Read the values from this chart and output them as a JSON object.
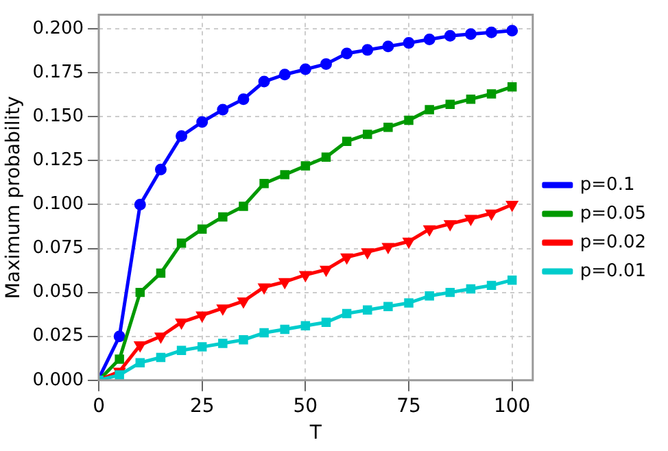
{
  "chart_data": {
    "type": "line",
    "xlabel": "T",
    "ylabel": "Maximum probability",
    "x": [
      0,
      5,
      10,
      15,
      20,
      25,
      30,
      35,
      40,
      45,
      50,
      55,
      60,
      65,
      70,
      75,
      80,
      85,
      90,
      95,
      100
    ],
    "series": [
      {
        "name": "p=0.1",
        "color": "#0000ff",
        "marker": "circle",
        "values": [
          0.001,
          0.025,
          0.1,
          0.12,
          0.139,
          0.147,
          0.154,
          0.16,
          0.17,
          0.174,
          0.177,
          0.18,
          0.186,
          0.188,
          0.19,
          0.192,
          0.194,
          0.196,
          0.197,
          0.198,
          0.199
        ]
      },
      {
        "name": "p=0.05",
        "color": "#009900",
        "marker": "square",
        "values": [
          0,
          0.012,
          0.05,
          0.061,
          0.078,
          0.086,
          0.093,
          0.099,
          0.112,
          0.117,
          0.122,
          0.127,
          0.136,
          0.14,
          0.144,
          0.148,
          0.154,
          0.157,
          0.16,
          0.163,
          0.167
        ]
      },
      {
        "name": "p=0.02",
        "color": "#ff0000",
        "marker": "triangle",
        "values": [
          0,
          0.005,
          0.02,
          0.025,
          0.033,
          0.037,
          0.041,
          0.045,
          0.053,
          0.056,
          0.06,
          0.063,
          0.07,
          0.073,
          0.076,
          0.079,
          0.086,
          0.089,
          0.092,
          0.095,
          0.1
        ]
      },
      {
        "name": "p=0.01",
        "color": "#00cccc",
        "marker": "square",
        "values": [
          0,
          0.003,
          0.01,
          0.013,
          0.017,
          0.019,
          0.021,
          0.023,
          0.027,
          0.029,
          0.031,
          0.033,
          0.038,
          0.04,
          0.042,
          0.044,
          0.048,
          0.05,
          0.052,
          0.054,
          0.057
        ]
      }
    ],
    "xlim": [
      0,
      105
    ],
    "xticks": [
      0,
      25,
      50,
      75,
      100
    ],
    "ylim": [
      0,
      0.208
    ],
    "yticks": [
      {
        "value": 0,
        "label": "0.000"
      },
      {
        "value": 0.025,
        "label": "0.025"
      },
      {
        "value": 0.05,
        "label": "0.050"
      },
      {
        "value": 0.075,
        "label": "0.075"
      },
      {
        "value": 0.1,
        "label": "0.100"
      },
      {
        "value": 0.125,
        "label": "0.125"
      },
      {
        "value": 0.15,
        "label": "0.150"
      },
      {
        "value": 0.175,
        "label": "0.175"
      },
      {
        "value": 0.2,
        "label": "0.200"
      }
    ],
    "grid": true,
    "legend": "right",
    "line_style": "solid"
  }
}
